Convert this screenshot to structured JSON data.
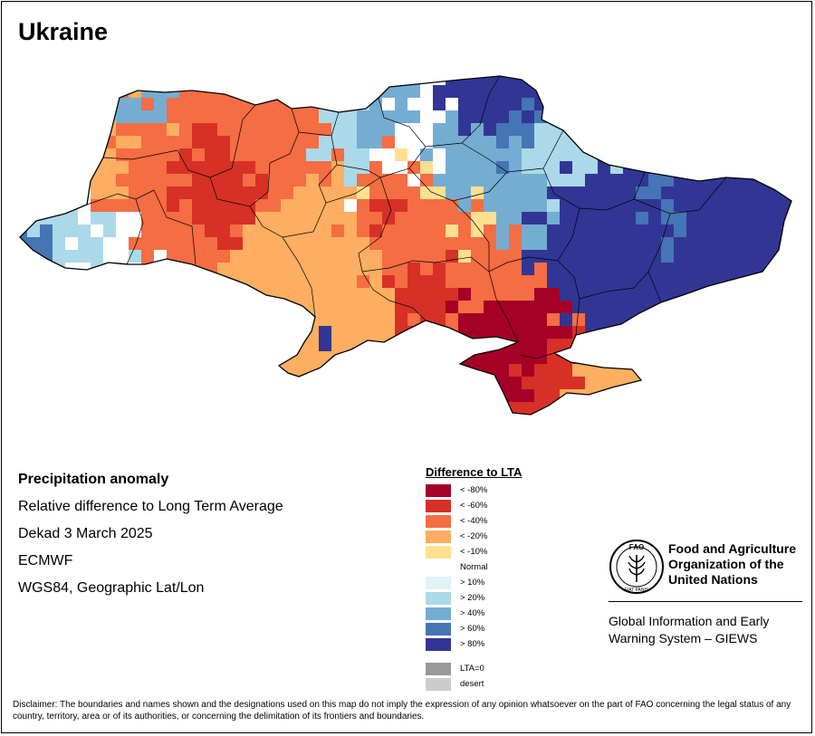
{
  "map": {
    "title": "Ukraine",
    "info": {
      "variable": "Precipitation anomaly",
      "description": "Relative difference to Long Term Average",
      "period": "Dekad 3 March 2025",
      "source": "ECMWF",
      "projection": "WGS84, Geographic Lat/Lon"
    },
    "colors": {
      "lt_minus80": "#a50026",
      "lt_minus60": "#d73027",
      "lt_minus40": "#f46d43",
      "lt_minus20": "#fdae61",
      "lt_minus10": "#fee090",
      "normal": "#ffffff",
      "gt_10": "#e0f3f8",
      "gt_20": "#abd9e9",
      "gt_40": "#74add1",
      "gt_60": "#4575b4",
      "gt_80": "#313695",
      "lta_zero": "#999999",
      "desert": "#cccccc"
    }
  },
  "legend": {
    "title": "Difference to LTA",
    "items": [
      {
        "label": "< -80%",
        "color": "#a50026"
      },
      {
        "label": "< -60%",
        "color": "#d73027"
      },
      {
        "label": "< -40%",
        "color": "#f46d43"
      },
      {
        "label": "< -20%",
        "color": "#fdae61"
      },
      {
        "label": "< -10%",
        "color": "#fee090"
      },
      {
        "label": "Normal",
        "color": "#ffffff"
      },
      {
        "label": "> 10%",
        "color": "#e0f3f8"
      },
      {
        "label": "> 20%",
        "color": "#abd9e9"
      },
      {
        "label": "> 40%",
        "color": "#74add1"
      },
      {
        "label": "> 60%",
        "color": "#4575b4"
      },
      {
        "label": "> 80%",
        "color": "#313695"
      },
      {
        "label": "LTA=0",
        "color": "#999999"
      },
      {
        "label": "desert",
        "color": "#cccccc"
      }
    ]
  },
  "fao": {
    "logo_text": "FAO",
    "logo_motto": "FIAT PANIS",
    "org_name": "Food and Agriculture Organization of the United Nations",
    "system_name": "Global Information and Early Warning System – GIEWS"
  },
  "disclaimer": "Disclaimer: The boundaries and names shown and the designations used on this map do not imply the expression of any opinion whatsoever on the part of FAO concerning the legal status of any country, territory, area or of its authorities, or concerning the delimitation of its frontiers and boundaries."
}
